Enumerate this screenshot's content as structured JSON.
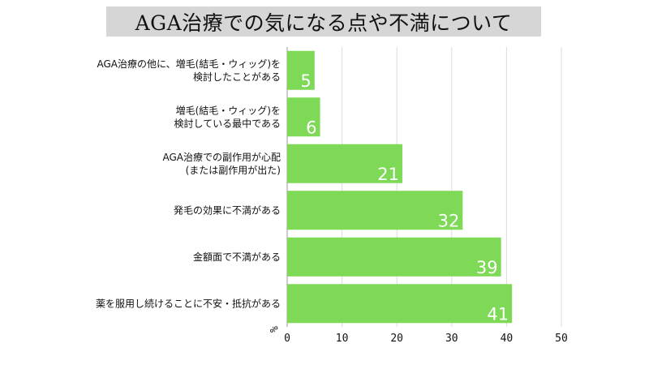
{
  "chart_data": {
    "type": "bar",
    "orientation": "horizontal",
    "title": "AGA治療での気になる点や不満について",
    "categories": [
      [
        "AGA治療の他に、増毛(結毛・ウィッグ)を",
        "検討したことがある"
      ],
      [
        "増毛(結毛・ウィッグ)を",
        "検討している最中である"
      ],
      [
        "AGA治療での副作用が心配",
        "(または副作用が出た)"
      ],
      [
        "発毛の効果に不満がある"
      ],
      [
        "金額面で不満がある"
      ],
      [
        "薬を服用し続けることに不安・抵抗がある"
      ]
    ],
    "values": [
      5,
      6,
      21,
      32,
      39,
      41
    ],
    "xlim": [
      0,
      50
    ],
    "xticks": [
      0,
      10,
      20,
      30,
      40,
      50
    ],
    "unit_label": "%",
    "grid": "vertical",
    "colors": {
      "bar": "#7ed957",
      "title_bg": "#d6d6d6",
      "grid": "#dddddd",
      "axis": "#999999"
    }
  }
}
